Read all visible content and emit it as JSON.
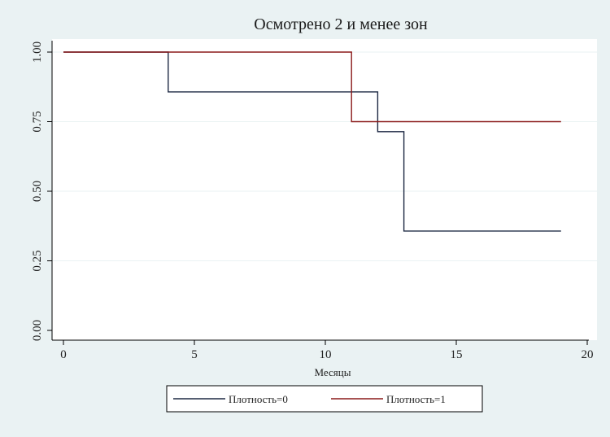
{
  "chart_data": {
    "type": "line",
    "step": true,
    "title": "Осмотрено 2 и менее зон",
    "xlabel": "Месяцы",
    "ylabel": "",
    "xlim": [
      0,
      20
    ],
    "ylim": [
      0,
      1
    ],
    "xticks": [
      0,
      5,
      10,
      15,
      20
    ],
    "yticks": [
      0,
      0.25,
      0.5,
      0.75,
      1
    ],
    "ytick_labels": [
      "0.00",
      "0.25",
      "0.50",
      "0.75",
      "1.00"
    ],
    "grid": "horizontal",
    "legend_position": "bottom",
    "series": [
      {
        "name": "Плотность=0",
        "color": "#1f2a44",
        "x": [
          0,
          4,
          12,
          13,
          19
        ],
        "y": [
          1.0,
          0.857,
          0.714,
          0.357,
          0.357
        ]
      },
      {
        "name": "Плотность=1",
        "color": "#8b1a1a",
        "x": [
          0,
          11,
          19
        ],
        "y": [
          1.0,
          0.75,
          0.75
        ]
      }
    ]
  },
  "colors": {
    "outer_background": "#eaf2f3",
    "plot_background": "#ffffff",
    "grid": "#eaf2f3",
    "axis": "#000000"
  }
}
